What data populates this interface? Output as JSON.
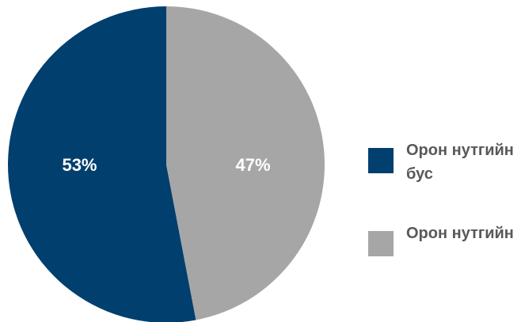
{
  "chart_data": {
    "type": "pie",
    "title": "",
    "slices": [
      {
        "label": "Орон нутгийн бус",
        "value": 53,
        "display": "53%",
        "color": "#003f6e"
      },
      {
        "label": "Орон нутгийн",
        "value": 47,
        "display": "47%",
        "color": "#a6a6a6"
      }
    ],
    "legend_position": "right",
    "data_label_color": "#ffffff"
  },
  "legend": {
    "items": [
      {
        "label": "Орон нутгийн бус",
        "color": "#003f6e"
      },
      {
        "label": "Орон нутгийн",
        "color": "#a6a6a6"
      }
    ]
  }
}
